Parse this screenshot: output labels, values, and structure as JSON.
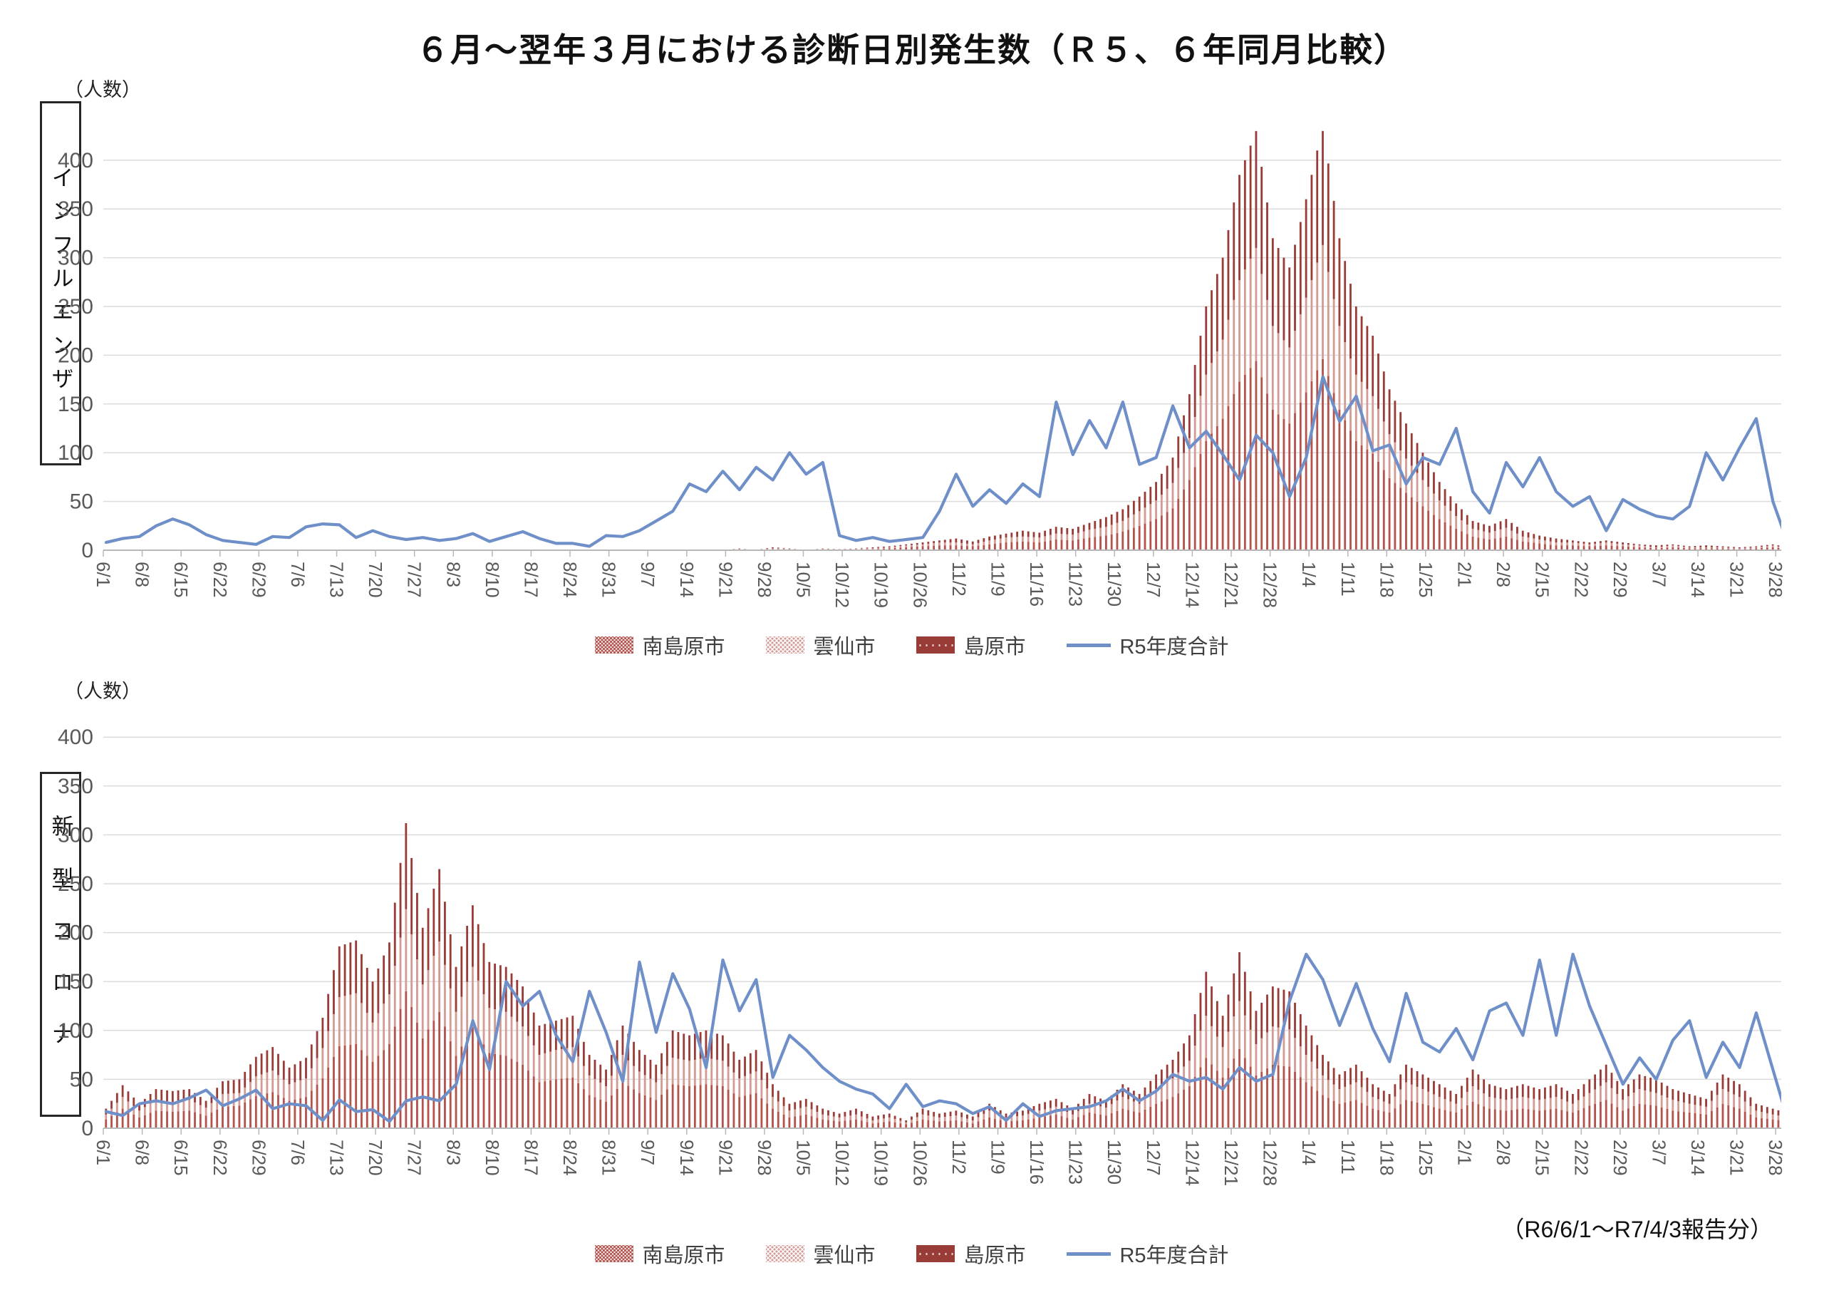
{
  "page": {
    "title": "６月～翌年３月における診断日別発生数（Ｒ５、６年同月比較）",
    "footnote": "（R6/6/1～R7/4/3報告分）",
    "unit_label": "（人数）"
  },
  "colors": {
    "bar_minamishimabara": "#b4524c",
    "bar_unzen": "#d49b95",
    "bar_shimabara": "#993c38",
    "line_r5": "#6f8fc8",
    "grid": "#dcdcdc",
    "axis": "#b8b8b8",
    "tick_text": "#595959"
  },
  "legend": {
    "items": [
      {
        "label": "南島原市",
        "swatch": "dense-dots"
      },
      {
        "label": "雲仙市",
        "swatch": "light-dots"
      },
      {
        "label": "島原市",
        "swatch": "solid-dash"
      },
      {
        "label": "R5年度合計",
        "swatch": "blue-line"
      }
    ]
  },
  "x_tick_labels": [
    "6/1",
    "6/8",
    "6/15",
    "6/22",
    "6/29",
    "7/6",
    "7/13",
    "7/20",
    "7/27",
    "8/3",
    "8/10",
    "8/17",
    "8/24",
    "8/31",
    "9/7",
    "9/14",
    "9/21",
    "9/28",
    "10/5",
    "10/12",
    "10/19",
    "10/26",
    "11/2",
    "11/9",
    "11/16",
    "11/23",
    "11/30",
    "12/7",
    "12/14",
    "12/21",
    "12/28",
    "1/4",
    "1/11",
    "1/18",
    "1/25",
    "2/1",
    "2/8",
    "2/15",
    "2/22",
    "2/29",
    "3/7",
    "3/14",
    "3/21",
    "3/28"
  ],
  "chart_data": [
    {
      "type": "bar",
      "combo": "stacked-bars-plus-line",
      "row_label": "インフルエンザ",
      "ylabel": "（人数）",
      "ylim": [
        0,
        400
      ],
      "y_ticks": [
        0,
        50,
        100,
        150,
        200,
        250,
        300,
        350,
        400
      ],
      "grid": "on",
      "start_date": "6/1",
      "end_date": "3/31",
      "sample_step_days": 3,
      "bar_series": [
        {
          "name": "南島原市",
          "pattern": "dense-dots",
          "color": "#b4524c",
          "values": [
            0,
            0,
            0,
            0,
            0,
            0,
            0,
            0,
            0,
            0,
            0,
            0,
            0,
            0,
            0,
            0,
            0,
            0,
            0,
            0,
            0,
            0,
            0,
            0,
            0,
            0,
            0,
            0,
            0,
            0,
            0,
            0,
            0,
            0,
            0,
            0,
            0,
            0,
            1,
            0,
            1,
            1,
            0,
            1,
            1,
            1,
            1,
            2,
            3,
            4,
            5,
            5,
            4,
            6,
            8,
            9,
            8,
            11,
            10,
            13,
            15,
            19,
            25,
            32,
            43,
            72,
            112,
            135,
            173,
            194,
            144,
            130,
            162,
            196,
            144,
            112,
            99,
            74,
            59,
            45,
            32,
            22,
            14,
            11,
            14,
            9,
            7,
            5,
            5,
            4,
            5,
            4,
            3,
            2,
            3,
            2,
            2,
            2,
            1,
            2,
            3,
            1
          ]
        },
        {
          "name": "雲仙市",
          "pattern": "light-dots",
          "color": "#d49b95",
          "values": [
            0,
            0,
            0,
            0,
            0,
            0,
            0,
            0,
            0,
            0,
            0,
            0,
            0,
            0,
            0,
            0,
            0,
            0,
            0,
            0,
            0,
            0,
            0,
            0,
            0,
            0,
            0,
            0,
            0,
            0,
            0,
            0,
            0,
            0,
            0,
            0,
            0,
            0,
            1,
            0,
            1,
            1,
            0,
            1,
            0,
            1,
            1,
            1,
            2,
            2,
            3,
            3,
            2,
            4,
            5,
            5,
            5,
            6,
            6,
            8,
            9,
            11,
            15,
            19,
            26,
            43,
            68,
            81,
            104,
            116,
            86,
            78,
            97,
            117,
            86,
            68,
            59,
            45,
            35,
            27,
            19,
            13,
            8,
            7,
            9,
            5,
            4,
            3,
            3,
            2,
            3,
            2,
            2,
            1,
            2,
            1,
            1,
            1,
            1,
            1,
            2,
            1
          ]
        },
        {
          "name": "島原市",
          "pattern": "solid-dash",
          "color": "#993c38",
          "values": [
            0,
            0,
            0,
            0,
            0,
            0,
            0,
            0,
            0,
            0,
            0,
            0,
            0,
            0,
            0,
            0,
            0,
            0,
            0,
            0,
            0,
            0,
            0,
            0,
            0,
            0,
            0,
            0,
            0,
            0,
            0,
            0,
            0,
            0,
            0,
            0,
            0,
            0,
            0,
            0,
            1,
            0,
            0,
            0,
            0,
            0,
            1,
            1,
            1,
            2,
            2,
            4,
            3,
            4,
            4,
            6,
            5,
            7,
            6,
            7,
            10,
            12,
            15,
            19,
            26,
            45,
            70,
            84,
            108,
            120,
            90,
            82,
            101,
            122,
            90,
            70,
            62,
            46,
            36,
            28,
            19,
            13,
            8,
            7,
            9,
            6,
            4,
            4,
            2,
            2,
            2,
            2,
            1,
            2,
            1,
            1,
            2,
            1,
            1,
            1,
            1,
            1
          ]
        }
      ],
      "line_series": {
        "name": "R5年度合計",
        "color": "#6f8fc8",
        "values": [
          8,
          12,
          14,
          25,
          32,
          26,
          16,
          10,
          8,
          6,
          14,
          13,
          24,
          27,
          26,
          13,
          20,
          14,
          11,
          13,
          10,
          12,
          17,
          9,
          14,
          19,
          12,
          7,
          7,
          4,
          15,
          14,
          20,
          30,
          40,
          68,
          60,
          81,
          62,
          85,
          72,
          100,
          78,
          90,
          15,
          10,
          13,
          9,
          11,
          13,
          40,
          78,
          45,
          62,
          48,
          68,
          55,
          152,
          98,
          133,
          105,
          152,
          88,
          95,
          148,
          105,
          122,
          98,
          72,
          118,
          100,
          55,
          95,
          178,
          132,
          158,
          102,
          108,
          68,
          95,
          88,
          125,
          60,
          38,
          90,
          65,
          95,
          60,
          45,
          55,
          20,
          52,
          42,
          35,
          32,
          45,
          100,
          72,
          105,
          135,
          50,
          2
        ]
      }
    },
    {
      "type": "bar",
      "combo": "stacked-bars-plus-line",
      "row_label": "新型コロナ",
      "ylabel": "（人数）",
      "ylim": [
        0,
        400
      ],
      "y_ticks": [
        0,
        50,
        100,
        150,
        200,
        250,
        300,
        350,
        400
      ],
      "grid": "on",
      "start_date": "6/1",
      "end_date": "3/31",
      "sample_step_days": 3,
      "bar_series": [
        {
          "name": "南島原市",
          "pattern": "dense-dots",
          "color": "#b4524c",
          "values": [
            9,
            20,
            11,
            18,
            17,
            18,
            13,
            22,
            23,
            33,
            37,
            28,
            32,
            51,
            84,
            86,
            68,
            86,
            140,
            92,
            119,
            74,
            103,
            77,
            74,
            65,
            47,
            50,
            52,
            34,
            27,
            47,
            36,
            29,
            45,
            43,
            45,
            43,
            32,
            36,
            20,
            11,
            14,
            9,
            7,
            9,
            5,
            7,
            4,
            9,
            7,
            8,
            5,
            11,
            7,
            8,
            11,
            14,
            9,
            16,
            13,
            20,
            16,
            25,
            32,
            43,
            72,
            52,
            81,
            54,
            65,
            63,
            47,
            34,
            25,
            29,
            20,
            16,
            29,
            25,
            20,
            16,
            27,
            20,
            18,
            20,
            18,
            20,
            16,
            23,
            29,
            18,
            25,
            23,
            18,
            16,
            14,
            25,
            20,
            11,
            9,
            7
          ]
        },
        {
          "name": "雲仙市",
          "pattern": "light-dots",
          "color": "#d49b95",
          "values": [
            5,
            12,
            7,
            11,
            10,
            11,
            8,
            13,
            13,
            20,
            22,
            17,
            19,
            31,
            50,
            52,
            40,
            51,
            84,
            55,
            72,
            45,
            62,
            46,
            45,
            39,
            28,
            30,
            31,
            20,
            16,
            28,
            22,
            18,
            27,
            26,
            27,
            26,
            19,
            22,
            12,
            7,
            8,
            5,
            4,
            5,
            3,
            4,
            2,
            5,
            4,
            5,
            3,
            7,
            4,
            5,
            7,
            8,
            5,
            9,
            8,
            12,
            9,
            15,
            19,
            26,
            43,
            31,
            49,
            32,
            39,
            38,
            28,
            20,
            15,
            18,
            12,
            9,
            18,
            15,
            12,
            9,
            16,
            12,
            11,
            12,
            11,
            12,
            9,
            13,
            18,
            11,
            15,
            13,
            11,
            9,
            8,
            15,
            12,
            7,
            5,
            4
          ]
        },
        {
          "name": "島原市",
          "pattern": "solid-dash",
          "color": "#993c38",
          "values": [
            6,
            12,
            7,
            11,
            11,
            11,
            7,
            13,
            14,
            20,
            24,
            17,
            21,
            31,
            52,
            54,
            42,
            53,
            88,
            58,
            74,
            46,
            63,
            47,
            46,
            41,
            30,
            30,
            32,
            21,
            17,
            30,
            22,
            18,
            28,
            26,
            28,
            26,
            19,
            22,
            13,
            7,
            8,
            6,
            4,
            6,
            4,
            4,
            2,
            6,
            4,
            5,
            4,
            7,
            4,
            5,
            7,
            8,
            6,
            10,
            7,
            13,
            10,
            15,
            19,
            26,
            45,
            32,
            50,
            34,
            41,
            39,
            30,
            21,
            15,
            18,
            13,
            10,
            18,
            15,
            13,
            10,
            17,
            13,
            11,
            13,
            11,
            13,
            10,
            14,
            18,
            11,
            15,
            14,
            11,
            10,
            8,
            15,
            13,
            7,
            6,
            4
          ]
        }
      ],
      "line_series": {
        "name": "R5年度合計",
        "color": "#6f8fc8",
        "values": [
          17,
          13,
          25,
          28,
          25,
          31,
          39,
          23,
          30,
          39,
          20,
          25,
          23,
          8,
          29,
          17,
          19,
          7,
          28,
          32,
          28,
          45,
          110,
          60,
          150,
          125,
          140,
          95,
          68,
          140,
          98,
          48,
          170,
          98,
          158,
          122,
          62,
          172,
          120,
          152,
          52,
          95,
          80,
          62,
          48,
          40,
          35,
          20,
          45,
          22,
          28,
          25,
          15,
          22,
          8,
          25,
          12,
          18,
          20,
          22,
          28,
          40,
          28,
          38,
          55,
          48,
          52,
          40,
          62,
          48,
          55,
          130,
          178,
          152,
          105,
          148,
          102,
          68,
          138,
          88,
          78,
          102,
          70,
          120,
          128,
          95,
          172,
          95,
          178,
          125,
          85,
          45,
          72,
          50,
          90,
          110,
          52,
          88,
          62,
          118,
          60,
          2
        ]
      }
    }
  ]
}
